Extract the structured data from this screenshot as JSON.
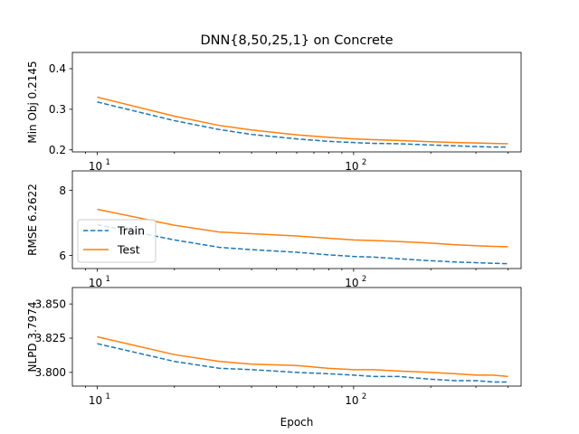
{
  "chart_data": [
    {
      "type": "line",
      "title": "DNN{8,50,25,1} on Concrete",
      "ylabel": "Min Obj 0.2145",
      "xlabel": "",
      "xscale": "log",
      "xlim": [
        8,
        450
      ],
      "ylim": [
        0.195,
        0.44
      ],
      "yticks": [
        0.2,
        0.3,
        0.4
      ],
      "ytick_labels": [
        "0.2",
        "0.3",
        "0.4"
      ],
      "x": [
        10,
        20,
        30,
        40,
        60,
        80,
        100,
        120,
        150,
        200,
        250,
        300,
        350,
        400
      ],
      "series": [
        {
          "name": "Train",
          "color": "#1f77b4",
          "style": "dashed",
          "values": [
            0.318,
            0.272,
            0.25,
            0.238,
            0.227,
            0.221,
            0.218,
            0.216,
            0.215,
            0.212,
            0.21,
            0.208,
            0.207,
            0.207
          ]
        },
        {
          "name": "Test",
          "color": "#ff7f0e",
          "style": "solid",
          "values": [
            0.33,
            0.283,
            0.26,
            0.249,
            0.237,
            0.231,
            0.227,
            0.225,
            0.223,
            0.22,
            0.218,
            0.217,
            0.216,
            0.215
          ]
        }
      ]
    },
    {
      "type": "line",
      "ylabel": "RMSE 6.2622",
      "xlabel": "",
      "xscale": "log",
      "xlim": [
        8,
        450
      ],
      "ylim": [
        5.6,
        8.6
      ],
      "yticks": [
        6,
        8
      ],
      "ytick_labels": [
        "6",
        "8"
      ],
      "x": [
        10,
        20,
        30,
        40,
        60,
        80,
        100,
        120,
        150,
        200,
        250,
        300,
        350,
        400
      ],
      "legend": {
        "placement": "left",
        "entries": [
          "Train",
          "Test"
        ]
      },
      "series": [
        {
          "name": "Train",
          "color": "#1f77b4",
          "style": "dashed",
          "values": [
            6.95,
            6.48,
            6.25,
            6.18,
            6.1,
            6.02,
            5.97,
            5.95,
            5.9,
            5.84,
            5.8,
            5.78,
            5.76,
            5.75
          ]
        },
        {
          "name": "Test",
          "color": "#ff7f0e",
          "style": "solid",
          "values": [
            7.42,
            6.93,
            6.72,
            6.67,
            6.6,
            6.53,
            6.48,
            6.46,
            6.43,
            6.38,
            6.33,
            6.3,
            6.28,
            6.27
          ]
        }
      ]
    },
    {
      "type": "line",
      "ylabel": "NLPD 3.7974",
      "xlabel": "Epoch",
      "xscale": "log",
      "xlim": [
        8,
        450
      ],
      "ylim": [
        3.79,
        3.862
      ],
      "yticks": [
        3.8,
        3.825,
        3.85
      ],
      "ytick_labels": [
        "3.800",
        "3.825",
        "3.850"
      ],
      "x": [
        10,
        20,
        30,
        40,
        60,
        80,
        100,
        120,
        150,
        200,
        250,
        300,
        350,
        400
      ],
      "series": [
        {
          "name": "Train",
          "color": "#1f77b4",
          "style": "dashed",
          "values": [
            3.821,
            3.808,
            3.803,
            3.802,
            3.8,
            3.799,
            3.798,
            3.797,
            3.797,
            3.795,
            3.794,
            3.794,
            3.793,
            3.793
          ]
        },
        {
          "name": "Test",
          "color": "#ff7f0e",
          "style": "solid",
          "values": [
            3.826,
            3.813,
            3.808,
            3.806,
            3.805,
            3.803,
            3.802,
            3.802,
            3.801,
            3.8,
            3.799,
            3.798,
            3.798,
            3.797
          ]
        }
      ]
    }
  ]
}
